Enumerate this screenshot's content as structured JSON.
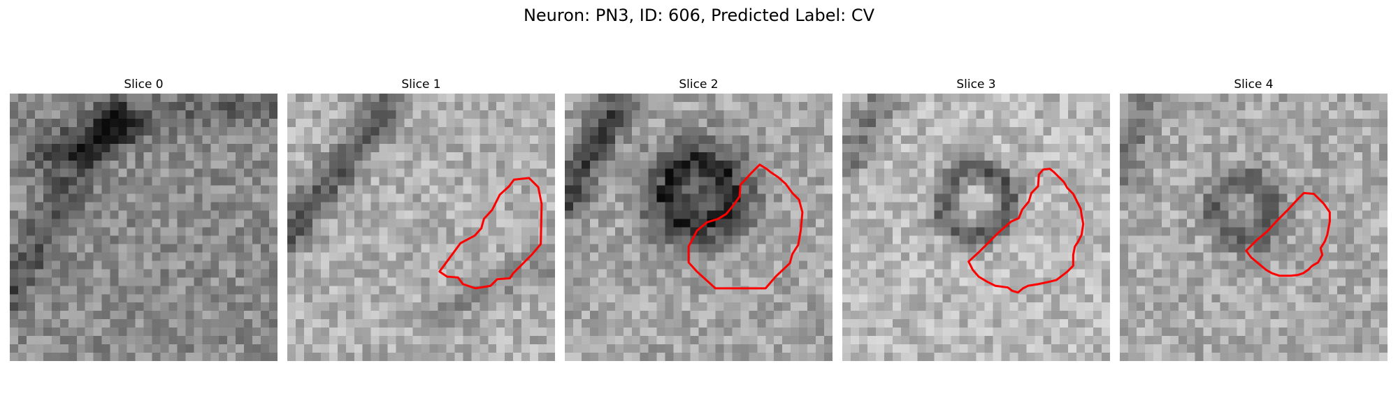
{
  "title": "Neuron: PN3, ID: 606, Predicted Label: CV",
  "contour_color": "#ff0000",
  "panels": [
    {
      "label": "Slice 0",
      "contour": []
    },
    {
      "label": "Slice 1",
      "contour": [
        [
          18.2,
          21.3
        ],
        [
          20.7,
          17.9
        ],
        [
          22.4,
          17.0
        ],
        [
          23.2,
          16.1
        ],
        [
          23.5,
          15.0
        ],
        [
          24.5,
          13.9
        ],
        [
          25.4,
          12.1
        ],
        [
          26.5,
          11.1
        ],
        [
          27.1,
          10.3
        ],
        [
          28.9,
          10.1
        ],
        [
          30.0,
          11.2
        ],
        [
          30.4,
          13.2
        ],
        [
          30.3,
          18.0
        ],
        [
          29.2,
          19.3
        ],
        [
          27.0,
          21.5
        ],
        [
          26.6,
          22.1
        ],
        [
          25.1,
          22.2
        ],
        [
          24.3,
          23.0
        ],
        [
          22.5,
          23.3
        ],
        [
          21.0,
          22.8
        ],
        [
          20.4,
          22.0
        ],
        [
          19.1,
          21.9
        ]
      ]
    },
    {
      "label": "Slice 2",
      "contour": [
        [
          14.8,
          18.3
        ],
        [
          15.8,
          16.4
        ],
        [
          17.0,
          15.4
        ],
        [
          18.3,
          15.0
        ],
        [
          19.3,
          14.4
        ],
        [
          20.2,
          13.3
        ],
        [
          20.9,
          12.3
        ],
        [
          21.0,
          10.9
        ],
        [
          22.3,
          9.5
        ],
        [
          23.3,
          8.5
        ],
        [
          24.1,
          9.0
        ],
        [
          24.6,
          9.4
        ],
        [
          25.5,
          10.0
        ],
        [
          26.4,
          10.8
        ],
        [
          27.2,
          11.9
        ],
        [
          28.0,
          12.7
        ],
        [
          28.4,
          14.2
        ],
        [
          28.2,
          16.4
        ],
        [
          27.9,
          18.1
        ],
        [
          27.2,
          19.2
        ],
        [
          26.9,
          20.3
        ],
        [
          25.2,
          21.9
        ],
        [
          24.0,
          23.3
        ],
        [
          21.3,
          23.3
        ],
        [
          18.0,
          23.3
        ],
        [
          15.8,
          21.3
        ],
        [
          14.8,
          20.2
        ]
      ]
    },
    {
      "label": "Slice 3",
      "contour": [
        [
          15.1,
          20.1
        ],
        [
          16.4,
          18.9
        ],
        [
          17.6,
          17.7
        ],
        [
          18.8,
          16.5
        ],
        [
          20.2,
          15.3
        ],
        [
          21.1,
          14.9
        ],
        [
          21.5,
          13.9
        ],
        [
          22.3,
          12.9
        ],
        [
          22.6,
          11.9
        ],
        [
          23.4,
          11.1
        ],
        [
          23.5,
          9.7
        ],
        [
          24.0,
          9.1
        ],
        [
          24.8,
          9.0
        ],
        [
          25.3,
          9.4
        ],
        [
          25.7,
          9.8
        ],
        [
          26.5,
          10.6
        ],
        [
          26.9,
          11.3
        ],
        [
          27.6,
          12.0
        ],
        [
          28.0,
          12.8
        ],
        [
          28.5,
          13.8
        ],
        [
          28.6,
          14.5
        ],
        [
          28.8,
          15.6
        ],
        [
          28.6,
          16.9
        ],
        [
          28.2,
          17.7
        ],
        [
          27.8,
          18.3
        ],
        [
          27.6,
          19.3
        ],
        [
          27.6,
          20.6
        ],
        [
          26.9,
          21.3
        ],
        [
          25.6,
          22.3
        ],
        [
          24.8,
          22.5
        ],
        [
          23.4,
          22.8
        ],
        [
          22.2,
          23.0
        ],
        [
          21.6,
          23.3
        ],
        [
          21.0,
          23.8
        ],
        [
          20.3,
          23.6
        ],
        [
          19.8,
          23.2
        ],
        [
          18.3,
          23.0
        ],
        [
          17.3,
          22.5
        ],
        [
          16.3,
          21.9
        ],
        [
          15.6,
          21.1
        ]
      ]
    },
    {
      "label": "Slice 4",
      "contour": [
        [
          15.1,
          18.8
        ],
        [
          16.3,
          17.6
        ],
        [
          17.6,
          16.5
        ],
        [
          18.8,
          15.2
        ],
        [
          20.1,
          13.9
        ],
        [
          21.3,
          12.6
        ],
        [
          22.0,
          11.9
        ],
        [
          23.2,
          12.0
        ],
        [
          23.7,
          12.5
        ],
        [
          24.4,
          13.2
        ],
        [
          25.1,
          14.2
        ],
        [
          25.1,
          15.3
        ],
        [
          24.8,
          16.9
        ],
        [
          24.5,
          17.7
        ],
        [
          24.0,
          18.5
        ],
        [
          24.2,
          19.3
        ],
        [
          23.7,
          20.2
        ],
        [
          23.0,
          20.6
        ],
        [
          22.5,
          21.1
        ],
        [
          21.9,
          21.5
        ],
        [
          21.3,
          21.7
        ],
        [
          20.4,
          21.8
        ],
        [
          19.1,
          21.8
        ],
        [
          18.2,
          21.5
        ],
        [
          17.5,
          21.1
        ],
        [
          16.9,
          20.6
        ],
        [
          16.3,
          20.1
        ],
        [
          15.7,
          19.6
        ]
      ]
    }
  ]
}
